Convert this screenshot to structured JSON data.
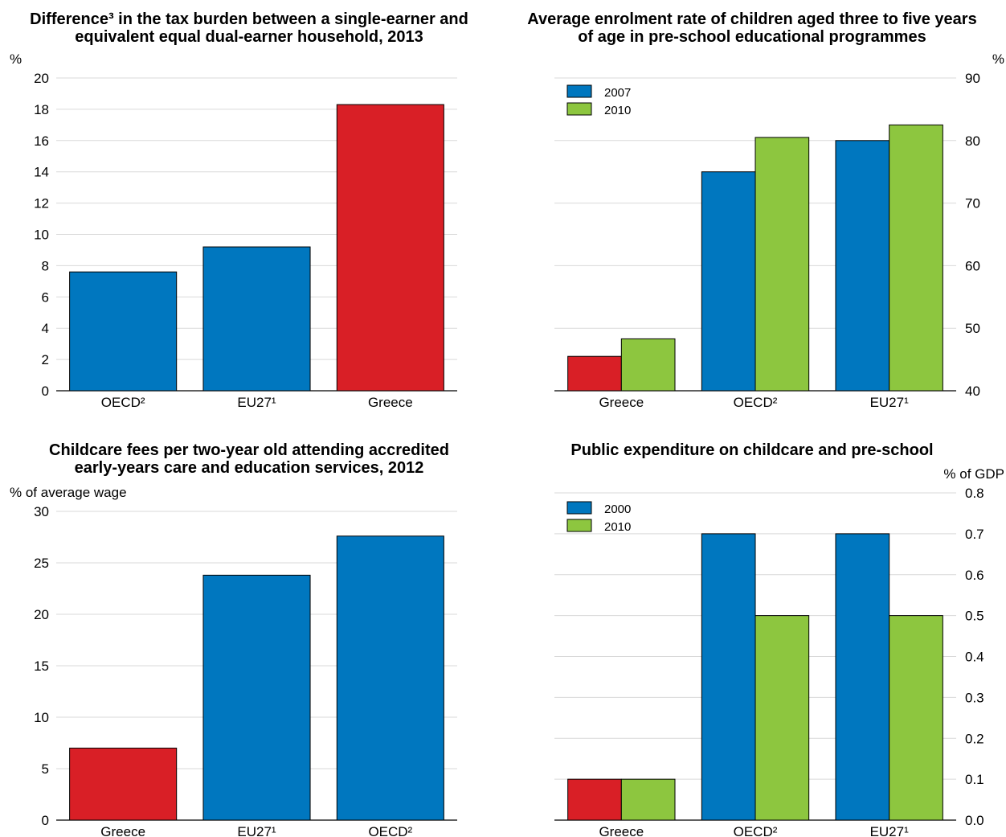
{
  "colors": {
    "blue": "#0077BF",
    "red": "#D91F26",
    "green": "#8DC63F"
  },
  "chart_data": [
    {
      "type": "bar",
      "title": [
        "Difference³ in the tax burden between a single-earner and",
        "equivalent equal dual-earner household, 2013"
      ],
      "unit": "%",
      "axis_side": "left",
      "ylim": [
        0,
        20
      ],
      "ticks": [
        "0",
        "2",
        "4",
        "6",
        "8",
        "10",
        "12",
        "14",
        "16",
        "18",
        "20"
      ],
      "categories": [
        "OECD²",
        "EU27¹",
        "Greece"
      ],
      "series": [
        {
          "values": [
            7.6,
            9.2,
            18.3
          ],
          "colors": [
            "blue",
            "blue",
            "red"
          ]
        }
      ],
      "grid": true
    },
    {
      "type": "bar",
      "title": [
        "Average enrolment rate of children aged three to five years",
        "of age in pre-school educational programmes"
      ],
      "unit": "%",
      "axis_side": "right",
      "ylim": [
        40,
        90
      ],
      "ticks": [
        "40",
        "50",
        "60",
        "70",
        "80",
        "90"
      ],
      "categories": [
        "Greece",
        "OECD²",
        "EU27¹"
      ],
      "series": [
        {
          "name": "2007",
          "values": [
            45.5,
            75.0,
            80.0
          ],
          "colors": [
            "red",
            "blue",
            "blue"
          ]
        },
        {
          "name": "2010",
          "values": [
            48.3,
            80.5,
            82.5
          ],
          "colors": [
            "green",
            "green",
            "green"
          ]
        }
      ],
      "legend": [
        {
          "label": "2007",
          "color": "blue"
        },
        {
          "label": "2010",
          "color": "green"
        }
      ],
      "legend_position": "top-left",
      "grid": true
    },
    {
      "type": "bar",
      "title": [
        "Childcare fees per two-year old attending accredited",
        "early-years care and education services, 2012"
      ],
      "unit": "% of average wage",
      "axis_side": "left",
      "ylim": [
        0,
        30
      ],
      "ticks": [
        "0",
        "5",
        "10",
        "15",
        "20",
        "25",
        "30"
      ],
      "categories": [
        "Greece",
        "EU27¹",
        "OECD²"
      ],
      "series": [
        {
          "values": [
            7.0,
            23.8,
            27.6
          ],
          "colors": [
            "red",
            "blue",
            "blue"
          ]
        }
      ],
      "grid": true
    },
    {
      "type": "bar",
      "title": [
        "Public expenditure on childcare and pre-school"
      ],
      "unit": "% of GDP",
      "axis_side": "right",
      "ylim": [
        0,
        0.8
      ],
      "ticks": [
        "0.0",
        "0.1",
        "0.2",
        "0.3",
        "0.4",
        "0.5",
        "0.6",
        "0.7",
        "0.8"
      ],
      "categories": [
        "Greece",
        "OECD²",
        "EU27¹"
      ],
      "series": [
        {
          "name": "2000",
          "values": [
            0.1,
            0.7,
            0.7
          ],
          "colors": [
            "red",
            "blue",
            "blue"
          ]
        },
        {
          "name": "2010",
          "values": [
            0.1,
            0.5,
            0.5
          ],
          "colors": [
            "green",
            "green",
            "green"
          ]
        }
      ],
      "legend": [
        {
          "label": "2000",
          "color": "blue"
        },
        {
          "label": "2010",
          "color": "green"
        }
      ],
      "legend_position": "top-left",
      "grid": true
    }
  ]
}
